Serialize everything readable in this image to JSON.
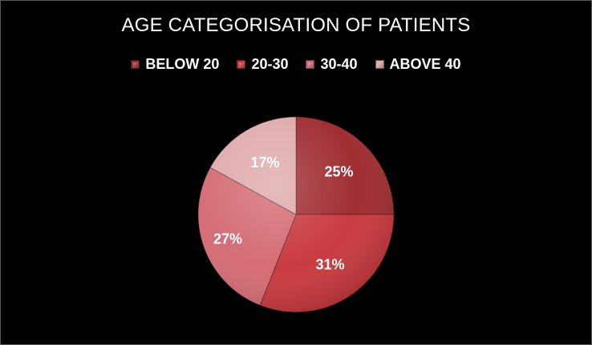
{
  "chart_data": {
    "type": "pie",
    "title": "AGE CATEGORISATION OF PATIENTS",
    "legend_position": "top",
    "categories": [
      "BELOW 20",
      "20-30",
      "30-40",
      "ABOVE 40"
    ],
    "values": [
      25,
      31,
      27,
      17
    ],
    "labels": [
      "25%",
      "31%",
      "27%",
      "17%"
    ],
    "colors": [
      "#9e2a2f",
      "#c8373c",
      "#d46a72",
      "#dfa9ab"
    ]
  }
}
